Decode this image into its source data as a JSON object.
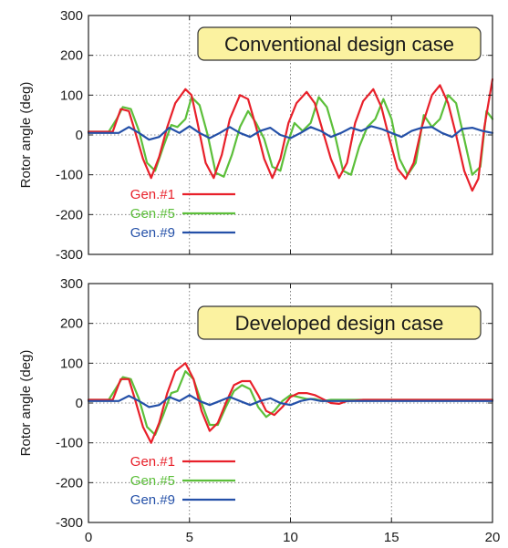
{
  "colors": {
    "gen1": "#e8202a",
    "gen5": "#5cbf3a",
    "gen9": "#2450a8",
    "annotation_box_fill": "#fbf2a0",
    "annotation_box_stroke": "#333333",
    "grid": "#666666"
  },
  "chart_data": [
    {
      "type": "line",
      "annotation": "Conventional design case",
      "xlabel": "",
      "ylabel": "Rotor angle (deg)",
      "xlim": [
        0,
        20
      ],
      "ylim": [
        -300,
        300
      ],
      "xticks": [
        "0",
        "5",
        "10",
        "15",
        "20"
      ],
      "yticks": [
        "-300",
        "-200",
        "-100",
        "0",
        "100",
        "200",
        "300"
      ],
      "grid": true,
      "legend_position": "lower-left",
      "series": [
        {
          "name": "Gen.#1",
          "color": "#e8202a",
          "x": [
            0,
            1.2,
            1.6,
            2.0,
            2.3,
            2.7,
            3.1,
            3.5,
            3.9,
            4.3,
            4.8,
            5.1,
            5.4,
            5.8,
            6.2,
            6.6,
            7.0,
            7.5,
            7.9,
            8.3,
            8.7,
            9.1,
            9.5,
            9.9,
            10.3,
            10.8,
            11.2,
            11.6,
            12.0,
            12.4,
            12.8,
            13.2,
            13.6,
            14.1,
            14.5,
            14.9,
            15.3,
            15.7,
            16.1,
            16.5,
            17.0,
            17.4,
            17.8,
            18.2,
            18.6,
            19.0,
            19.3,
            19.6,
            20.0
          ],
          "y": [
            8,
            8,
            65,
            60,
            10,
            -60,
            -108,
            -55,
            20,
            80,
            115,
            100,
            30,
            -70,
            -108,
            -50,
            40,
            100,
            90,
            20,
            -60,
            -108,
            -60,
            30,
            80,
            108,
            80,
            10,
            -60,
            -108,
            -70,
            30,
            85,
            115,
            70,
            -10,
            -85,
            -110,
            -70,
            20,
            100,
            125,
            80,
            0,
            -90,
            -140,
            -110,
            20,
            140
          ]
        },
        {
          "name": "Gen.#5",
          "color": "#5cbf3a",
          "x": [
            0,
            1.0,
            1.4,
            1.7,
            2.1,
            2.5,
            2.9,
            3.3,
            3.7,
            4.1,
            4.4,
            4.8,
            5.1,
            5.5,
            5.9,
            6.3,
            6.7,
            7.1,
            7.5,
            7.9,
            8.3,
            8.7,
            9.1,
            9.5,
            9.8,
            10.2,
            10.6,
            11.0,
            11.4,
            11.8,
            12.2,
            12.6,
            13.0,
            13.4,
            13.8,
            14.2,
            14.6,
            15.0,
            15.4,
            15.8,
            16.2,
            16.6,
            17.0,
            17.4,
            17.8,
            18.2,
            18.6,
            19.0,
            19.4,
            19.7,
            20.0
          ],
          "y": [
            8,
            8,
            40,
            70,
            65,
            10,
            -70,
            -90,
            -30,
            25,
            20,
            40,
            95,
            75,
            0,
            -95,
            -105,
            -50,
            20,
            60,
            30,
            -10,
            -80,
            -90,
            -30,
            30,
            10,
            30,
            95,
            70,
            0,
            -90,
            -100,
            -30,
            20,
            40,
            90,
            40,
            -60,
            -100,
            -70,
            50,
            20,
            40,
            100,
            80,
            -10,
            -100,
            -80,
            60,
            40
          ]
        },
        {
          "name": "Gen.#9",
          "color": "#2450a8",
          "x": [
            0,
            1.5,
            2.0,
            2.5,
            3.0,
            3.5,
            4.0,
            4.5,
            5.0,
            5.5,
            6.0,
            6.5,
            7.0,
            7.5,
            8.0,
            8.5,
            9.0,
            9.5,
            10.0,
            10.5,
            11.0,
            11.5,
            12.0,
            12.5,
            13.0,
            13.5,
            14.0,
            14.5,
            15.0,
            15.5,
            16.0,
            16.5,
            17.0,
            17.5,
            18.0,
            18.5,
            19.0,
            19.5,
            20.0
          ],
          "y": [
            5,
            5,
            20,
            5,
            -12,
            -5,
            18,
            5,
            22,
            5,
            -8,
            5,
            20,
            5,
            -5,
            10,
            18,
            0,
            -8,
            5,
            20,
            10,
            -5,
            5,
            18,
            10,
            22,
            15,
            5,
            -5,
            10,
            18,
            20,
            5,
            -5,
            15,
            18,
            10,
            5
          ]
        }
      ]
    },
    {
      "type": "line",
      "annotation": "Developed design case",
      "xlabel": "",
      "ylabel": "Rotor angle (deg)",
      "xlim": [
        0,
        20
      ],
      "ylim": [
        -300,
        300
      ],
      "xticks": [
        "0",
        "5",
        "10",
        "15",
        "20"
      ],
      "yticks": [
        "-300",
        "-200",
        "-100",
        "0",
        "100",
        "200",
        "300"
      ],
      "grid": true,
      "legend_position": "lower-left",
      "series": [
        {
          "name": "Gen.#1",
          "color": "#e8202a",
          "x": [
            0,
            1.2,
            1.6,
            2.0,
            2.3,
            2.7,
            3.1,
            3.5,
            3.9,
            4.3,
            4.8,
            5.2,
            5.6,
            6.0,
            6.4,
            6.8,
            7.2,
            7.6,
            8.0,
            8.4,
            8.8,
            9.2,
            9.6,
            10.0,
            10.4,
            10.8,
            11.2,
            11.6,
            12.0,
            12.4,
            12.8,
            13.2,
            13.6,
            14.0,
            15.0,
            16.0,
            17.0,
            18.0,
            19.0,
            20.0
          ],
          "y": [
            8,
            8,
            60,
            60,
            10,
            -60,
            -100,
            -50,
            25,
            80,
            100,
            60,
            -20,
            -70,
            -50,
            0,
            45,
            55,
            55,
            20,
            -20,
            -30,
            -10,
            15,
            25,
            25,
            20,
            10,
            0,
            -2,
            5,
            6,
            8,
            8,
            8,
            8,
            8,
            8,
            8,
            8
          ]
        },
        {
          "name": "Gen.#5",
          "color": "#5cbf3a",
          "x": [
            0,
            1.0,
            1.4,
            1.7,
            2.1,
            2.5,
            2.9,
            3.3,
            3.7,
            4.1,
            4.4,
            4.8,
            5.2,
            5.6,
            6.0,
            6.4,
            6.8,
            7.2,
            7.6,
            8.0,
            8.4,
            8.8,
            9.2,
            9.6,
            10.0,
            10.4,
            10.8,
            11.2,
            11.6,
            12.0,
            12.4,
            13.0,
            14.0,
            15.0,
            16.0,
            17.0,
            18.0,
            19.0,
            20.0
          ],
          "y": [
            8,
            8,
            40,
            65,
            60,
            10,
            -60,
            -80,
            -30,
            25,
            30,
            80,
            60,
            0,
            -55,
            -55,
            -10,
            30,
            45,
            35,
            -10,
            -35,
            -20,
            5,
            20,
            15,
            10,
            10,
            5,
            8,
            8,
            8,
            8,
            8,
            8,
            8,
            8,
            8,
            8
          ]
        },
        {
          "name": "Gen.#9",
          "color": "#2450a8",
          "x": [
            0,
            1.5,
            2.0,
            2.5,
            3.0,
            3.5,
            4.0,
            4.5,
            5.0,
            5.5,
            6.0,
            6.5,
            7.0,
            7.5,
            8.0,
            8.5,
            9.0,
            9.5,
            10.0,
            10.5,
            11.0,
            11.5,
            12.0,
            13.0,
            14.0,
            15.0,
            16.0,
            17.0,
            18.0,
            19.0,
            20.0
          ],
          "y": [
            5,
            5,
            18,
            5,
            -10,
            -5,
            15,
            5,
            20,
            5,
            -5,
            5,
            15,
            5,
            -5,
            5,
            12,
            0,
            -5,
            5,
            10,
            5,
            5,
            5,
            5,
            5,
            5,
            5,
            5,
            5,
            5
          ]
        }
      ]
    }
  ]
}
